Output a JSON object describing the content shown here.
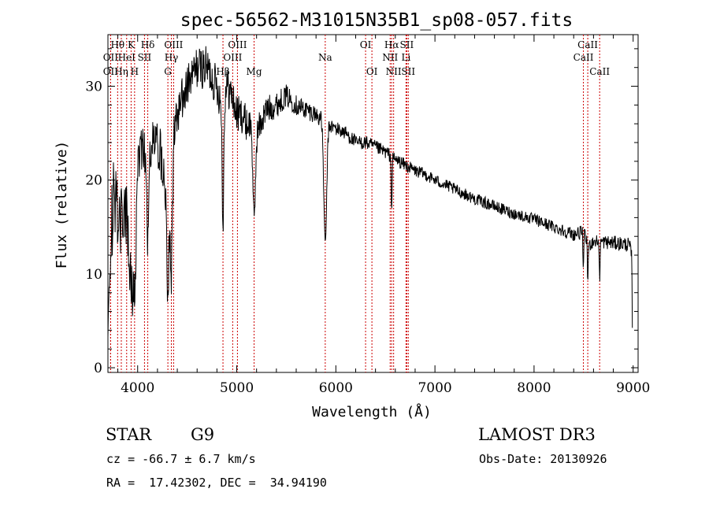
{
  "chart_data": {
    "type": "line",
    "title": "spec-56562-M31015N35B1_sp08-057.fits",
    "xlabel": "Wavelength (Å)",
    "ylabel": "Flux (relative)",
    "xlim": [
      3700,
      9050
    ],
    "ylim": [
      -0.5,
      35.5
    ],
    "xticks": [
      4000,
      5000,
      6000,
      7000,
      8000,
      9000
    ],
    "yticks": [
      0,
      10,
      20,
      30
    ],
    "line_color": "#000000",
    "marker_color": "#cc0000",
    "spectral_lines": [
      {
        "label": "Hθ",
        "x": 3798,
        "row": 0
      },
      {
        "label": "OII",
        "x": 3727,
        "row": 1
      },
      {
        "label": "OII",
        "x": 3727,
        "row": 2
      },
      {
        "label": "Hη",
        "x": 3835,
        "row": 2
      },
      {
        "label": "K",
        "x": 3934,
        "row": 0
      },
      {
        "label": "HeI",
        "x": 3889,
        "row": 1
      },
      {
        "label": "H",
        "x": 3969,
        "row": 2
      },
      {
        "label": "Hδ",
        "x": 4102,
        "row": 0
      },
      {
        "label": "SII",
        "x": 4069,
        "row": 1
      },
      {
        "label": "OIII",
        "x": 4363,
        "row": 0
      },
      {
        "label": "Hγ",
        "x": 4340,
        "row": 1
      },
      {
        "label": "G",
        "x": 4305,
        "row": 2
      },
      {
        "label": "OIII",
        "x": 5007,
        "row": 0
      },
      {
        "label": "OIII",
        "x": 4959,
        "row": 1
      },
      {
        "label": "Hβ",
        "x": 4861,
        "row": 2
      },
      {
        "label": "Mg",
        "x": 5175,
        "row": 2
      },
      {
        "label": "Na",
        "x": 5893,
        "row": 1
      },
      {
        "label": "OI",
        "x": 6300,
        "row": 0
      },
      {
        "label": "OI",
        "x": 6364,
        "row": 2
      },
      {
        "label": "Hα",
        "x": 6563,
        "row": 0
      },
      {
        "label": "SII",
        "x": 6716,
        "row": 0
      },
      {
        "label": "NII",
        "x": 6548,
        "row": 1
      },
      {
        "label": "Li",
        "x": 6708,
        "row": 1
      },
      {
        "label": "NII",
        "x": 6583,
        "row": 2
      },
      {
        "label": "SII",
        "x": 6731,
        "row": 2
      },
      {
        "label": "CaII",
        "x": 8542,
        "row": 0
      },
      {
        "label": "CaII",
        "x": 8498,
        "row": 1
      },
      {
        "label": "CaII",
        "x": 8662,
        "row": 2
      }
    ],
    "spectrum_anchors": [
      [
        3700,
        0.5
      ],
      [
        3712,
        11
      ],
      [
        3730,
        14
      ],
      [
        3760,
        19
      ],
      [
        3800,
        16
      ],
      [
        3850,
        15
      ],
      [
        3900,
        18
      ],
      [
        3950,
        19
      ],
      [
        4000,
        23
      ],
      [
        4050,
        24
      ],
      [
        4100,
        22
      ],
      [
        4150,
        24
      ],
      [
        4200,
        24
      ],
      [
        4250,
        22
      ],
      [
        4300,
        18
      ],
      [
        4330,
        20
      ],
      [
        4360,
        24
      ],
      [
        4400,
        27
      ],
      [
        4500,
        30
      ],
      [
        4600,
        32
      ],
      [
        4700,
        32
      ],
      [
        4800,
        30
      ],
      [
        4850,
        28
      ],
      [
        4900,
        30
      ],
      [
        4950,
        29
      ],
      [
        5000,
        27
      ],
      [
        5050,
        27
      ],
      [
        5100,
        26
      ],
      [
        5150,
        26
      ],
      [
        5200,
        25
      ],
      [
        5300,
        27.5
      ],
      [
        5400,
        28
      ],
      [
        5500,
        29
      ],
      [
        5600,
        28
      ],
      [
        5700,
        27.5
      ],
      [
        5800,
        27
      ],
      [
        5900,
        26
      ],
      [
        6000,
        25.5
      ],
      [
        6100,
        25
      ],
      [
        6200,
        24
      ],
      [
        6300,
        24
      ],
      [
        6400,
        23.5
      ],
      [
        6500,
        23
      ],
      [
        6600,
        22.2
      ],
      [
        6700,
        21.6
      ],
      [
        6800,
        21
      ],
      [
        6900,
        20.6
      ],
      [
        7000,
        20
      ],
      [
        7200,
        19
      ],
      [
        7400,
        18
      ],
      [
        7600,
        17.2
      ],
      [
        7800,
        16.4
      ],
      [
        8000,
        15.8
      ],
      [
        8200,
        15
      ],
      [
        8400,
        14.2
      ],
      [
        8500,
        14.5
      ],
      [
        8550,
        13
      ],
      [
        8600,
        13.5
      ],
      [
        8700,
        13.4
      ],
      [
        8800,
        13.3
      ],
      [
        8900,
        13.2
      ],
      [
        8960,
        13.1
      ],
      [
        8985,
        12
      ],
      [
        8995,
        2
      ]
    ],
    "absorption_features": [
      [
        3934,
        0.5,
        0.55
      ],
      [
        3969,
        0.5,
        0.5
      ],
      [
        4102,
        0.4,
        0.25
      ],
      [
        4305,
        0.55,
        0.25
      ],
      [
        4340,
        0.55,
        0.25
      ],
      [
        4861,
        0.45,
        0.2
      ],
      [
        5175,
        0.4,
        0.3
      ],
      [
        5893,
        0.5,
        0.35
      ],
      [
        6563,
        0.25,
        0.12
      ],
      [
        8498,
        0.3,
        0.1
      ],
      [
        8542,
        0.3,
        0.1
      ],
      [
        8662,
        0.3,
        0.1
      ]
    ],
    "noise_amplitude": [
      [
        3700,
        6
      ],
      [
        4000,
        3.5
      ],
      [
        4500,
        3
      ],
      [
        5000,
        2.6
      ],
      [
        5500,
        1.5
      ],
      [
        6000,
        1
      ],
      [
        7000,
        0.8
      ],
      [
        8000,
        0.8
      ],
      [
        9000,
        1
      ]
    ]
  },
  "info": {
    "object_class": "STAR",
    "subclass": "G9",
    "survey": "LAMOST DR3",
    "redshift": "cz = -66.7 ± 6.7 km/s",
    "obs_date": "Obs-Date: 20130926",
    "coords": "RA =  17.42302, DEC =  34.94190"
  }
}
